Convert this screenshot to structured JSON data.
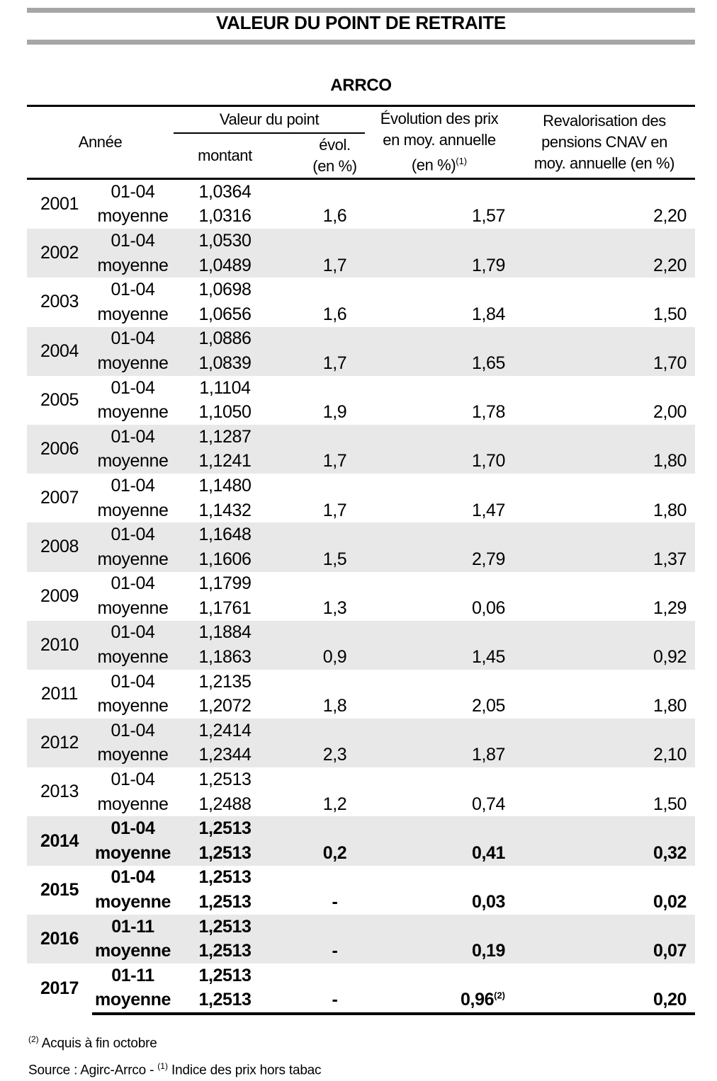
{
  "title": "VALEUR DU POINT DE RETRAITE",
  "subtitle": "ARRCO",
  "colors": {
    "bar": "#a6a6a6",
    "row_shade": "#e8e8e8",
    "text": "#000000"
  },
  "table": {
    "header": {
      "annee": "Année",
      "valeur_du_point": "Valeur du point",
      "montant": "montant",
      "evol_line1": "évol.",
      "evol_line2": "(en %)",
      "prix_line1": "Évolution des prix",
      "prix_line2": "en moy. annuelle",
      "prix_line3": "(en %)",
      "prix_sup": "(1)",
      "cnav_line1": "Revalorisation des",
      "cnav_line2": "pensions CNAV en",
      "cnav_line3": "moy. annuelle (en %)"
    },
    "years": [
      {
        "year": "2001",
        "shaded": false,
        "bold": false,
        "period1": "01-04",
        "montant1": "1,0364",
        "period2": "moyenne",
        "montant2": "1,0316",
        "evol": "1,6",
        "prix": "1,57",
        "cnav": "2,20"
      },
      {
        "year": "2002",
        "shaded": true,
        "bold": false,
        "period1": "01-04",
        "montant1": "1,0530",
        "period2": "moyenne",
        "montant2": "1,0489",
        "evol": "1,7",
        "prix": "1,79",
        "cnav": "2,20"
      },
      {
        "year": "2003",
        "shaded": false,
        "bold": false,
        "period1": "01-04",
        "montant1": "1,0698",
        "period2": "moyenne",
        "montant2": "1,0656",
        "evol": "1,6",
        "prix": "1,84",
        "cnav": "1,50"
      },
      {
        "year": "2004",
        "shaded": true,
        "bold": false,
        "period1": "01-04",
        "montant1": "1,0886",
        "period2": "moyenne",
        "montant2": "1,0839",
        "evol": "1,7",
        "prix": "1,65",
        "cnav": "1,70"
      },
      {
        "year": "2005",
        "shaded": false,
        "bold": false,
        "period1": "01-04",
        "montant1": "1,1104",
        "period2": "moyenne",
        "montant2": "1,1050",
        "evol": "1,9",
        "prix": "1,78",
        "cnav": "2,00"
      },
      {
        "year": "2006",
        "shaded": true,
        "bold": false,
        "period1": "01-04",
        "montant1": "1,1287",
        "period2": "moyenne",
        "montant2": "1,1241",
        "evol": "1,7",
        "prix": "1,70",
        "cnav": "1,80"
      },
      {
        "year": "2007",
        "shaded": false,
        "bold": false,
        "period1": "01-04",
        "montant1": "1,1480",
        "period2": "moyenne",
        "montant2": "1,1432",
        "evol": "1,7",
        "prix": "1,47",
        "cnav": "1,80"
      },
      {
        "year": "2008",
        "shaded": true,
        "bold": false,
        "period1": "01-04",
        "montant1": "1,1648",
        "period2": "moyenne",
        "montant2": "1,1606",
        "evol": "1,5",
        "prix": "2,79",
        "cnav": "1,37"
      },
      {
        "year": "2009",
        "shaded": false,
        "bold": false,
        "period1": "01-04",
        "montant1": "1,1799",
        "period2": "moyenne",
        "montant2": "1,1761",
        "evol": "1,3",
        "prix": "0,06",
        "cnav": "1,29"
      },
      {
        "year": "2010",
        "shaded": true,
        "bold": false,
        "period1": "01-04",
        "montant1": "1,1884",
        "period2": "moyenne",
        "montant2": "1,1863",
        "evol": "0,9",
        "prix": "1,45",
        "cnav": "0,92"
      },
      {
        "year": "2011",
        "shaded": false,
        "bold": false,
        "period1": "01-04",
        "montant1": "1,2135",
        "period2": "moyenne",
        "montant2": "1,2072",
        "evol": "1,8",
        "prix": "2,05",
        "cnav": "1,80"
      },
      {
        "year": "2012",
        "shaded": true,
        "bold": false,
        "period1": "01-04",
        "montant1": "1,2414",
        "period2": "moyenne",
        "montant2": "1,2344",
        "evol": "2,3",
        "prix": "1,87",
        "cnav": "2,10"
      },
      {
        "year": "2013",
        "shaded": false,
        "bold": false,
        "period1": "01-04",
        "montant1": "1,2513",
        "period2": "moyenne",
        "montant2": "1,2488",
        "evol": "1,2",
        "prix": "0,74",
        "cnav": "1,50"
      },
      {
        "year": "2014",
        "shaded": true,
        "bold": true,
        "period1": "01-04",
        "montant1": "1,2513",
        "period2": "moyenne",
        "montant2": "1,2513",
        "evol": "0,2",
        "prix": "0,41",
        "cnav": "0,32"
      },
      {
        "year": "2015",
        "shaded": false,
        "bold": true,
        "period1": "01-04",
        "montant1": "1,2513",
        "period2": "moyenne",
        "montant2": "1,2513",
        "evol": "-",
        "prix": "0,03",
        "cnav": "0,02"
      },
      {
        "year": "2016",
        "shaded": true,
        "bold": true,
        "period1": "01-11",
        "montant1": "1,2513",
        "period2": "moyenne",
        "montant2": "1,2513",
        "evol": "-",
        "prix": "0,19",
        "cnav": "0,07"
      },
      {
        "year": "2017",
        "shaded": false,
        "bold": true,
        "period1": "01-11",
        "montant1": "1,2513",
        "period2": "moyenne",
        "montant2": "1,2513",
        "evol": "-",
        "prix": "0,96",
        "prix_sup": "(2)",
        "cnav": "0,20"
      }
    ]
  },
  "footnotes": {
    "note2_sup": "(2)",
    "note2_text": " Acquis à fin octobre",
    "source_text": "Source : Agirc-Arrco - ",
    "note1_sup": "(1)",
    "note1_text": " Indice des prix hors tabac"
  }
}
